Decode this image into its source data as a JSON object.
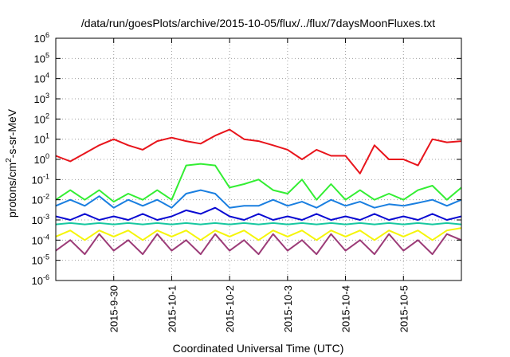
{
  "chart_data": {
    "type": "line",
    "title": "/data/run/goesPlots/archive/2015-10-05/flux/../flux/7daysMoonFluxes.txt",
    "xlabel": "Coordinated Universal Time (UTC)",
    "ylabel": "protons/cm²-s-sr-MeV",
    "ylabel_parts": {
      "base": "protons/cm",
      "sup": "2",
      "rest": "-s-sr-MeV"
    },
    "y_scale": "log",
    "ylim": [
      1e-06,
      1000000.0
    ],
    "y_ticks": [
      {
        "value": 1000000.0,
        "base": "10",
        "exp": "6"
      },
      {
        "value": 100000.0,
        "base": "10",
        "exp": "5"
      },
      {
        "value": 10000.0,
        "base": "10",
        "exp": "4"
      },
      {
        "value": 1000.0,
        "base": "10",
        "exp": "3"
      },
      {
        "value": 100.0,
        "base": "10",
        "exp": "2"
      },
      {
        "value": 10.0,
        "base": "10",
        "exp": "1"
      },
      {
        "value": 1.0,
        "base": "10",
        "exp": "0"
      },
      {
        "value": 0.1,
        "base": "10",
        "exp": "-1"
      },
      {
        "value": 0.01,
        "base": "10",
        "exp": "-2"
      },
      {
        "value": 0.001,
        "base": "10",
        "exp": "-3"
      },
      {
        "value": 0.0001,
        "base": "10",
        "exp": "-4"
      },
      {
        "value": 1e-05,
        "base": "10",
        "exp": "-5"
      },
      {
        "value": 1e-06,
        "base": "10",
        "exp": "-6"
      }
    ],
    "xlim": [
      "2015-09-29T00:00",
      "2015-10-06T00:00"
    ],
    "x_ticks": [
      "2015-9-30",
      "2015-10-1",
      "2015-10-2",
      "2015-10-3",
      "2015-10-4",
      "2015-10-5"
    ],
    "x_tick_dates": [
      "2015-09-30",
      "2015-10-01",
      "2015-10-02",
      "2015-10-03",
      "2015-10-04",
      "2015-10-05"
    ],
    "grid": true,
    "legend": "none",
    "series": [
      {
        "color": "#e8141b",
        "x": [
          "2015-09-29T00:00",
          "2015-09-29T06:00",
          "2015-09-29T12:00",
          "2015-09-29T18:00",
          "2015-09-30T00:00",
          "2015-09-30T06:00",
          "2015-09-30T12:00",
          "2015-09-30T18:00",
          "2015-10-01T00:00",
          "2015-10-01T06:00",
          "2015-10-01T12:00",
          "2015-10-01T18:00",
          "2015-10-02T00:00",
          "2015-10-02T06:00",
          "2015-10-02T12:00",
          "2015-10-02T18:00",
          "2015-10-03T00:00",
          "2015-10-03T06:00",
          "2015-10-03T12:00",
          "2015-10-03T18:00",
          "2015-10-04T00:00",
          "2015-10-04T06:00",
          "2015-10-04T12:00",
          "2015-10-04T18:00",
          "2015-10-05T00:00",
          "2015-10-05T06:00",
          "2015-10-05T12:00",
          "2015-10-05T18:00",
          "2015-10-06T00:00"
        ],
        "values": [
          1.5,
          0.8,
          2,
          5,
          10,
          5,
          3,
          8,
          12,
          8,
          6,
          15,
          30,
          10,
          8,
          5,
          3,
          1,
          3,
          1.5,
          1.5,
          0.2,
          5,
          1,
          1,
          0.5,
          10,
          7,
          8
        ]
      },
      {
        "color": "#33ee33",
        "x": [
          "2015-09-29T00:00",
          "2015-09-29T06:00",
          "2015-09-29T12:00",
          "2015-09-29T18:00",
          "2015-09-30T00:00",
          "2015-09-30T06:00",
          "2015-09-30T12:00",
          "2015-09-30T18:00",
          "2015-10-01T00:00",
          "2015-10-01T06:00",
          "2015-10-01T12:00",
          "2015-10-01T18:00",
          "2015-10-02T00:00",
          "2015-10-02T06:00",
          "2015-10-02T12:00",
          "2015-10-02T18:00",
          "2015-10-03T00:00",
          "2015-10-03T06:00",
          "2015-10-03T12:00",
          "2015-10-03T18:00",
          "2015-10-04T00:00",
          "2015-10-04T06:00",
          "2015-10-04T12:00",
          "2015-10-04T18:00",
          "2015-10-05T00:00",
          "2015-10-05T06:00",
          "2015-10-05T12:00",
          "2015-10-05T18:00",
          "2015-10-06T00:00"
        ],
        "values": [
          0.01,
          0.03,
          0.01,
          0.03,
          0.008,
          0.02,
          0.01,
          0.03,
          0.01,
          0.5,
          0.6,
          0.5,
          0.04,
          0.06,
          0.1,
          0.03,
          0.02,
          0.1,
          0.01,
          0.06,
          0.01,
          0.03,
          0.01,
          0.02,
          0.01,
          0.03,
          0.05,
          0.01,
          0.04
        ]
      },
      {
        "color": "#1a7fe0",
        "x": [
          "2015-09-29T00:00",
          "2015-09-29T06:00",
          "2015-09-29T12:00",
          "2015-09-29T18:00",
          "2015-09-30T00:00",
          "2015-09-30T06:00",
          "2015-09-30T12:00",
          "2015-09-30T18:00",
          "2015-10-01T00:00",
          "2015-10-01T06:00",
          "2015-10-01T12:00",
          "2015-10-01T18:00",
          "2015-10-02T00:00",
          "2015-10-02T06:00",
          "2015-10-02T12:00",
          "2015-10-02T18:00",
          "2015-10-03T00:00",
          "2015-10-03T06:00",
          "2015-10-03T12:00",
          "2015-10-03T18:00",
          "2015-10-04T00:00",
          "2015-10-04T06:00",
          "2015-10-04T12:00",
          "2015-10-04T18:00",
          "2015-10-05T00:00",
          "2015-10-05T06:00",
          "2015-10-05T12:00",
          "2015-10-05T18:00",
          "2015-10-06T00:00"
        ],
        "values": [
          0.005,
          0.01,
          0.005,
          0.015,
          0.004,
          0.01,
          0.005,
          0.01,
          0.004,
          0.02,
          0.03,
          0.02,
          0.004,
          0.005,
          0.005,
          0.01,
          0.005,
          0.008,
          0.004,
          0.01,
          0.005,
          0.008,
          0.004,
          0.006,
          0.005,
          0.007,
          0.01,
          0.005,
          0.01
        ]
      },
      {
        "color": "#0a0ad2",
        "x": [
          "2015-09-29T00:00",
          "2015-09-29T06:00",
          "2015-09-29T12:00",
          "2015-09-29T18:00",
          "2015-09-30T00:00",
          "2015-09-30T06:00",
          "2015-09-30T12:00",
          "2015-09-30T18:00",
          "2015-10-01T00:00",
          "2015-10-01T06:00",
          "2015-10-01T12:00",
          "2015-10-01T18:00",
          "2015-10-02T00:00",
          "2015-10-02T06:00",
          "2015-10-02T12:00",
          "2015-10-02T18:00",
          "2015-10-03T00:00",
          "2015-10-03T06:00",
          "2015-10-03T12:00",
          "2015-10-03T18:00",
          "2015-10-04T00:00",
          "2015-10-04T06:00",
          "2015-10-04T12:00",
          "2015-10-04T18:00",
          "2015-10-05T00:00",
          "2015-10-05T06:00",
          "2015-10-05T12:00",
          "2015-10-05T18:00",
          "2015-10-06T00:00"
        ],
        "values": [
          0.0015,
          0.001,
          0.002,
          0.001,
          0.0015,
          0.001,
          0.002,
          0.001,
          0.0015,
          0.003,
          0.002,
          0.004,
          0.0015,
          0.001,
          0.002,
          0.001,
          0.0015,
          0.001,
          0.002,
          0.001,
          0.0015,
          0.001,
          0.002,
          0.001,
          0.0015,
          0.001,
          0.002,
          0.001,
          0.0015
        ]
      },
      {
        "color": "#18c8a0",
        "x": [
          "2015-09-29T00:00",
          "2015-09-29T06:00",
          "2015-09-29T12:00",
          "2015-09-29T18:00",
          "2015-09-30T00:00",
          "2015-09-30T06:00",
          "2015-09-30T12:00",
          "2015-09-30T18:00",
          "2015-10-01T00:00",
          "2015-10-01T06:00",
          "2015-10-01T12:00",
          "2015-10-01T18:00",
          "2015-10-02T00:00",
          "2015-10-02T06:00",
          "2015-10-02T12:00",
          "2015-10-02T18:00",
          "2015-10-03T00:00",
          "2015-10-03T06:00",
          "2015-10-03T12:00",
          "2015-10-03T18:00",
          "2015-10-04T00:00",
          "2015-10-04T06:00",
          "2015-10-04T12:00",
          "2015-10-04T18:00",
          "2015-10-05T00:00",
          "2015-10-05T06:00",
          "2015-10-05T12:00",
          "2015-10-05T18:00",
          "2015-10-06T00:00"
        ],
        "values": [
          0.0006,
          0.0007,
          0.0006,
          0.0007,
          0.0006,
          0.0007,
          0.0006,
          0.0007,
          0.0006,
          0.0007,
          0.0006,
          0.0007,
          0.0006,
          0.0007,
          0.0006,
          0.0007,
          0.0006,
          0.0007,
          0.0006,
          0.0007,
          0.0006,
          0.0007,
          0.0006,
          0.0007,
          0.0006,
          0.0007,
          0.0006,
          0.0007,
          0.0006
        ]
      },
      {
        "color": "#f5f50a",
        "x": [
          "2015-09-29T00:00",
          "2015-09-29T06:00",
          "2015-09-29T12:00",
          "2015-09-29T18:00",
          "2015-09-30T00:00",
          "2015-09-30T06:00",
          "2015-09-30T12:00",
          "2015-09-30T18:00",
          "2015-10-01T00:00",
          "2015-10-01T06:00",
          "2015-10-01T12:00",
          "2015-10-01T18:00",
          "2015-10-02T00:00",
          "2015-10-02T06:00",
          "2015-10-02T12:00",
          "2015-10-02T18:00",
          "2015-10-03T00:00",
          "2015-10-03T06:00",
          "2015-10-03T12:00",
          "2015-10-03T18:00",
          "2015-10-04T00:00",
          "2015-10-04T06:00",
          "2015-10-04T12:00",
          "2015-10-04T18:00",
          "2015-10-05T00:00",
          "2015-10-05T06:00",
          "2015-10-05T12:00",
          "2015-10-05T18:00",
          "2015-10-06T00:00"
        ],
        "values": [
          0.00015,
          0.0003,
          0.0001,
          0.0003,
          0.00015,
          0.0003,
          0.0001,
          0.0003,
          0.00015,
          0.0003,
          0.0001,
          0.0003,
          0.00015,
          0.0003,
          0.0001,
          0.0003,
          0.00015,
          0.0003,
          0.0001,
          0.0003,
          0.00015,
          0.0003,
          0.0001,
          0.0003,
          0.00015,
          0.0003,
          0.0001,
          0.0003,
          0.0004
        ]
      },
      {
        "color": "#9c3c78",
        "x": [
          "2015-09-29T00:00",
          "2015-09-29T06:00",
          "2015-09-29T12:00",
          "2015-09-29T18:00",
          "2015-09-30T00:00",
          "2015-09-30T06:00",
          "2015-09-30T12:00",
          "2015-09-30T18:00",
          "2015-10-01T00:00",
          "2015-10-01T06:00",
          "2015-10-01T12:00",
          "2015-10-01T18:00",
          "2015-10-02T00:00",
          "2015-10-02T06:00",
          "2015-10-02T12:00",
          "2015-10-02T18:00",
          "2015-10-03T00:00",
          "2015-10-03T06:00",
          "2015-10-03T12:00",
          "2015-10-03T18:00",
          "2015-10-04T00:00",
          "2015-10-04T06:00",
          "2015-10-04T12:00",
          "2015-10-04T18:00",
          "2015-10-05T00:00",
          "2015-10-05T06:00",
          "2015-10-05T12:00",
          "2015-10-05T18:00",
          "2015-10-06T00:00"
        ],
        "values": [
          3e-05,
          0.0001,
          2e-05,
          0.0002,
          3e-05,
          0.0001,
          2e-05,
          0.0002,
          3e-05,
          0.0001,
          2e-05,
          0.0002,
          3e-05,
          0.0001,
          2e-05,
          0.0002,
          3e-05,
          0.0001,
          2e-05,
          0.0002,
          3e-05,
          0.0001,
          2e-05,
          0.0002,
          3e-05,
          0.0001,
          2e-05,
          0.0002,
          0.0001
        ]
      }
    ]
  }
}
